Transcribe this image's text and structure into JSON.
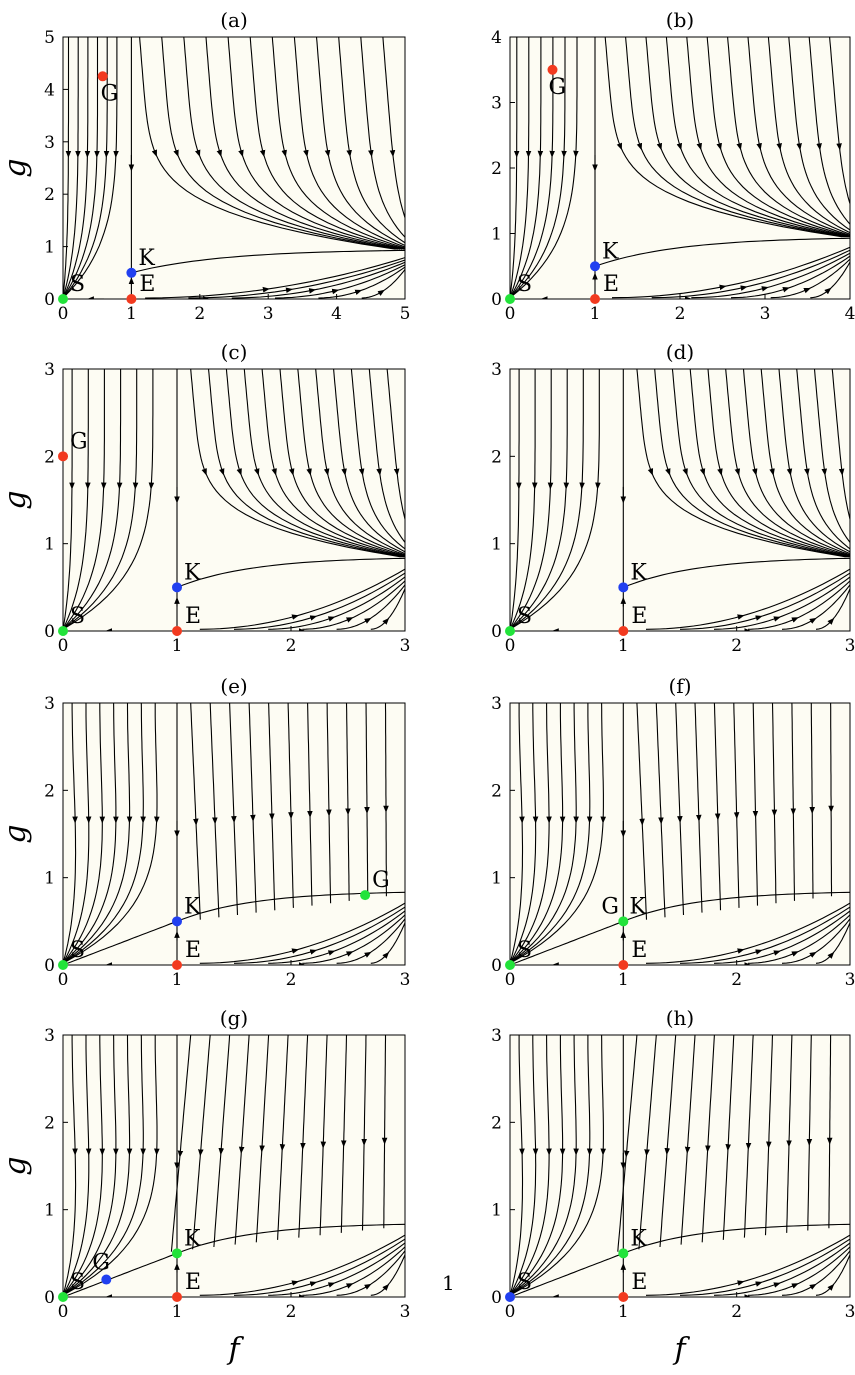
{
  "page_number": "1",
  "axis_labels": {
    "x": "f",
    "y": "g"
  },
  "colors": {
    "green": "#22e33a",
    "red": "#f23a1f",
    "blue": "#2140f0",
    "background": "#fdfcf3",
    "line": "#000000"
  },
  "panels": [
    {
      "title": "(a)",
      "xlim": [
        0,
        5
      ],
      "ylim": [
        0,
        5
      ],
      "xticks": [
        "0",
        "1",
        "2",
        "3",
        "4",
        "5"
      ],
      "yticks": [
        "0",
        "1",
        "2",
        "3",
        "4",
        "5"
      ],
      "points": [
        {
          "label": "S",
          "x": 0,
          "y": 0,
          "color": "green"
        },
        {
          "label": "E",
          "x": 1,
          "y": 0,
          "color": "red"
        },
        {
          "label": "K",
          "x": 1,
          "y": 0.5,
          "color": "blue"
        },
        {
          "label": "G",
          "x": 0.58,
          "y": 4.25,
          "color": "red"
        }
      ]
    },
    {
      "title": "(b)",
      "xlim": [
        0,
        4
      ],
      "ylim": [
        0,
        4
      ],
      "xticks": [
        "0",
        "1",
        "2",
        "3",
        "4"
      ],
      "yticks": [
        "0",
        "1",
        "2",
        "3",
        "4"
      ],
      "points": [
        {
          "label": "S",
          "x": 0,
          "y": 0,
          "color": "green"
        },
        {
          "label": "E",
          "x": 1,
          "y": 0,
          "color": "red"
        },
        {
          "label": "K",
          "x": 1,
          "y": 0.5,
          "color": "blue"
        },
        {
          "label": "G",
          "x": 0.5,
          "y": 3.5,
          "color": "red"
        }
      ]
    },
    {
      "title": "(c)",
      "xlim": [
        0,
        3
      ],
      "ylim": [
        0,
        3
      ],
      "xticks": [
        "0",
        "1",
        "2",
        "3"
      ],
      "yticks": [
        "0",
        "1",
        "2",
        "3"
      ],
      "points": [
        {
          "label": "S",
          "x": 0,
          "y": 0,
          "color": "green"
        },
        {
          "label": "E",
          "x": 1,
          "y": 0,
          "color": "red"
        },
        {
          "label": "K",
          "x": 1,
          "y": 0.5,
          "color": "blue"
        },
        {
          "label": "G",
          "x": 0,
          "y": 2,
          "color": "red"
        }
      ]
    },
    {
      "title": "(d)",
      "xlim": [
        0,
        3
      ],
      "ylim": [
        0,
        3
      ],
      "xticks": [
        "0",
        "1",
        "2",
        "3"
      ],
      "yticks": [
        "0",
        "1",
        "2",
        "3"
      ],
      "points": [
        {
          "label": "S",
          "x": 0,
          "y": 0,
          "color": "green"
        },
        {
          "label": "E",
          "x": 1,
          "y": 0,
          "color": "red"
        },
        {
          "label": "K",
          "x": 1,
          "y": 0.5,
          "color": "blue"
        }
      ]
    },
    {
      "title": "(e)",
      "xlim": [
        0,
        3
      ],
      "ylim": [
        0,
        3
      ],
      "xticks": [
        "0",
        "1",
        "2",
        "3"
      ],
      "yticks": [
        "0",
        "1",
        "2",
        "3"
      ],
      "points": [
        {
          "label": "S",
          "x": 0,
          "y": 0,
          "color": "green"
        },
        {
          "label": "E",
          "x": 1,
          "y": 0,
          "color": "red"
        },
        {
          "label": "K",
          "x": 1,
          "y": 0.5,
          "color": "blue"
        },
        {
          "label": "G",
          "x": 2.65,
          "y": 0.8,
          "color": "green"
        }
      ]
    },
    {
      "title": "(f)",
      "xlim": [
        0,
        3
      ],
      "ylim": [
        0,
        3
      ],
      "xticks": [
        "0",
        "1",
        "2",
        "3"
      ],
      "yticks": [
        "0",
        "1",
        "2",
        "3"
      ],
      "points": [
        {
          "label": "S",
          "x": 0,
          "y": 0,
          "color": "green"
        },
        {
          "label": "E",
          "x": 1,
          "y": 0,
          "color": "red"
        },
        {
          "label": "GK",
          "x": 1,
          "y": 0.5,
          "color": "green"
        }
      ]
    },
    {
      "title": "(g)",
      "xlim": [
        0,
        3
      ],
      "ylim": [
        0,
        3
      ],
      "xticks": [
        "0",
        "1",
        "2",
        "3"
      ],
      "yticks": [
        "0",
        "1",
        "2",
        "3"
      ],
      "points": [
        {
          "label": "S",
          "x": 0,
          "y": 0,
          "color": "green"
        },
        {
          "label": "E",
          "x": 1,
          "y": 0,
          "color": "red"
        },
        {
          "label": "K",
          "x": 1,
          "y": 0.5,
          "color": "green"
        },
        {
          "label": "G",
          "x": 0.38,
          "y": 0.2,
          "color": "blue"
        }
      ]
    },
    {
      "title": "(h)",
      "xlim": [
        0,
        3
      ],
      "ylim": [
        0,
        3
      ],
      "xticks": [
        "0",
        "1",
        "2",
        "3"
      ],
      "yticks": [
        "0",
        "1",
        "2",
        "3"
      ],
      "points": [
        {
          "label": "S",
          "x": 0,
          "y": 0,
          "color": "blue"
        },
        {
          "label": "E",
          "x": 1,
          "y": 0,
          "color": "red"
        },
        {
          "label": "K",
          "x": 1,
          "y": 0.5,
          "color": "green"
        }
      ]
    }
  ]
}
